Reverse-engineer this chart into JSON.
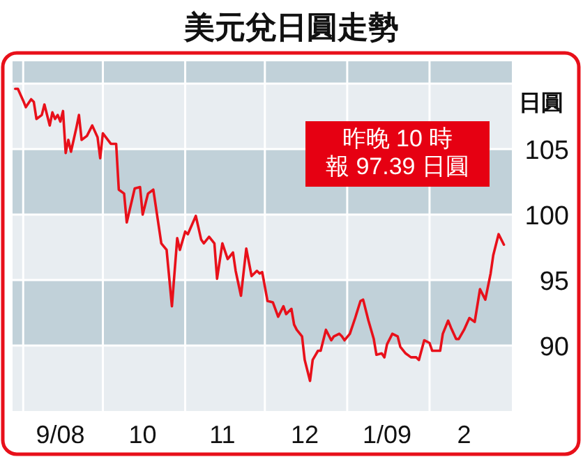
{
  "chart_data": {
    "type": "line",
    "title": "美元兌日圓走勢",
    "ylabel": "日圓",
    "annotations": [
      "昨晚 10 時",
      "報 97.39 日圓"
    ],
    "x": [
      "2008-08-29",
      "2008-08-30",
      "2008-09-01",
      "2008-09-02",
      "2008-09-04",
      "2008-09-05",
      "2008-09-06",
      "2008-09-08",
      "2008-09-09",
      "2008-09-11",
      "2008-09-12",
      "2008-09-13",
      "2008-09-14",
      "2008-09-15",
      "2008-09-16",
      "2008-09-17",
      "2008-09-18",
      "2008-09-19",
      "2008-09-21",
      "2008-09-22",
      "2008-09-23",
      "2008-09-25",
      "2008-09-27",
      "2008-09-29",
      "2008-09-30",
      "2008-10-01",
      "2008-10-04",
      "2008-10-06",
      "2008-10-07",
      "2008-10-09",
      "2008-10-10",
      "2008-10-13",
      "2008-10-15",
      "2008-10-16",
      "2008-10-18",
      "2008-10-20",
      "2008-10-23",
      "2008-10-25",
      "2008-10-27",
      "2008-10-29",
      "2008-10-30",
      "2008-11-01",
      "2008-11-02",
      "2008-11-05",
      "2008-11-07",
      "2008-11-08",
      "2008-11-10",
      "2008-11-12",
      "2008-11-13",
      "2008-11-15",
      "2008-11-17",
      "2008-11-19",
      "2008-11-20",
      "2008-11-22",
      "2008-11-24",
      "2008-11-26",
      "2008-11-28",
      "2008-11-29",
      "2008-11-30",
      "2008-12-02",
      "2008-12-04",
      "2008-12-06",
      "2008-12-08",
      "2008-12-09",
      "2008-12-11",
      "2008-12-12",
      "2008-12-13",
      "2008-12-15",
      "2008-12-16",
      "2008-12-18",
      "2008-12-19",
      "2008-12-21",
      "2008-12-22",
      "2008-12-24",
      "2008-12-26",
      "2008-12-27",
      "2008-12-29",
      "2008-12-30",
      "2008-12-31",
      "2009-01-02",
      "2009-01-04",
      "2009-01-06",
      "2009-01-07",
      "2009-01-09",
      "2009-01-11",
      "2009-01-12",
      "2009-01-14",
      "2009-01-15",
      "2009-01-16",
      "2009-01-18",
      "2009-01-20",
      "2009-01-21",
      "2009-01-23",
      "2009-01-25",
      "2009-01-27",
      "2009-01-28",
      "2009-01-30",
      "2009-02-01",
      "2009-02-02",
      "2009-02-05",
      "2009-02-06",
      "2009-02-08",
      "2009-02-09",
      "2009-02-11",
      "2009-02-12",
      "2009-02-14",
      "2009-02-16",
      "2009-02-18",
      "2009-02-20",
      "2009-02-22",
      "2009-02-24",
      "2009-02-25",
      "2009-02-27",
      "2009-03-01"
    ],
    "series": [
      {
        "color": "#e8101a",
        "values": [
          109.6,
          109.6,
          108.7,
          108.2,
          108.8,
          108.6,
          107.3,
          107.6,
          108.4,
          106.8,
          107.8,
          107.3,
          107.6,
          107.1,
          107.9,
          104.7,
          105.7,
          104.8,
          106.6,
          107.6,
          105.7,
          106.0,
          106.8,
          105.9,
          104.3,
          106.2,
          105.4,
          105.4,
          101.9,
          101.6,
          99.4,
          102.0,
          102.1,
          100.0,
          101.6,
          101.9,
          97.8,
          97.3,
          93.0,
          98.2,
          97.3,
          98.7,
          98.5,
          99.9,
          98.1,
          97.8,
          98.3,
          97.8,
          95.1,
          97.8,
          96.6,
          97.1,
          95.7,
          93.8,
          97.4,
          95.3,
          95.7,
          95.5,
          95.6,
          93.4,
          93.3,
          92.2,
          93.0,
          92.4,
          92.8,
          91.6,
          91.2,
          90.7,
          88.9,
          87.3,
          88.9,
          89.6,
          89.6,
          91.2,
          90.4,
          90.7,
          90.9,
          90.7,
          90.4,
          90.9,
          92.1,
          93.4,
          93.5,
          91.9,
          90.5,
          89.3,
          89.4,
          89.1,
          90.1,
          90.9,
          90.7,
          89.9,
          89.4,
          89.1,
          89.1,
          88.9,
          90.4,
          90.2,
          89.6,
          89.6,
          90.9,
          91.9,
          91.4,
          90.5,
          90.5,
          91.2,
          92.1,
          91.8,
          94.3,
          93.5,
          95.5,
          96.9,
          98.5,
          97.7
        ]
      }
    ],
    "xlim": [
      "2008-08-28",
      "2009-03-04"
    ],
    "xticks": [
      {
        "value": "2008-09-15",
        "label": "9/08"
      },
      {
        "value": "2008-10-16",
        "label": "10"
      },
      {
        "value": "2008-11-15",
        "label": "11"
      },
      {
        "value": "2008-12-16",
        "label": "12"
      },
      {
        "value": "2009-01-16",
        "label": "1/09"
      },
      {
        "value": "2009-02-14",
        "label": "2"
      }
    ],
    "ylim": [
      85,
      111.7
    ],
    "yticks": [
      90,
      95,
      100,
      105,
      {
        "value": 110,
        "label": null
      }
    ],
    "grid": "y",
    "bands": [
      {
        "axis": "y",
        "from": 90,
        "to": 95,
        "color": "#c1d1d9"
      },
      {
        "axis": "y",
        "from": 100,
        "to": 105,
        "color": "#c1d1d9"
      },
      {
        "axis": "y",
        "from": 110,
        "to": 111.7,
        "color": "#c1d1d9"
      }
    ],
    "ref_lines": [
      {
        "axis": "x",
        "value": "2008-09-01",
        "color": "#ffffff"
      },
      {
        "axis": "x",
        "value": "2008-10-01",
        "color": "#ffffff"
      },
      {
        "axis": "x",
        "value": "2008-11-01",
        "color": "#ffffff"
      },
      {
        "axis": "x",
        "value": "2008-12-01",
        "color": "#ffffff"
      },
      {
        "axis": "x",
        "value": "2009-01-01",
        "color": "#ffffff"
      },
      {
        "axis": "x",
        "value": "2009-02-01",
        "color": "#ffffff"
      }
    ]
  }
}
